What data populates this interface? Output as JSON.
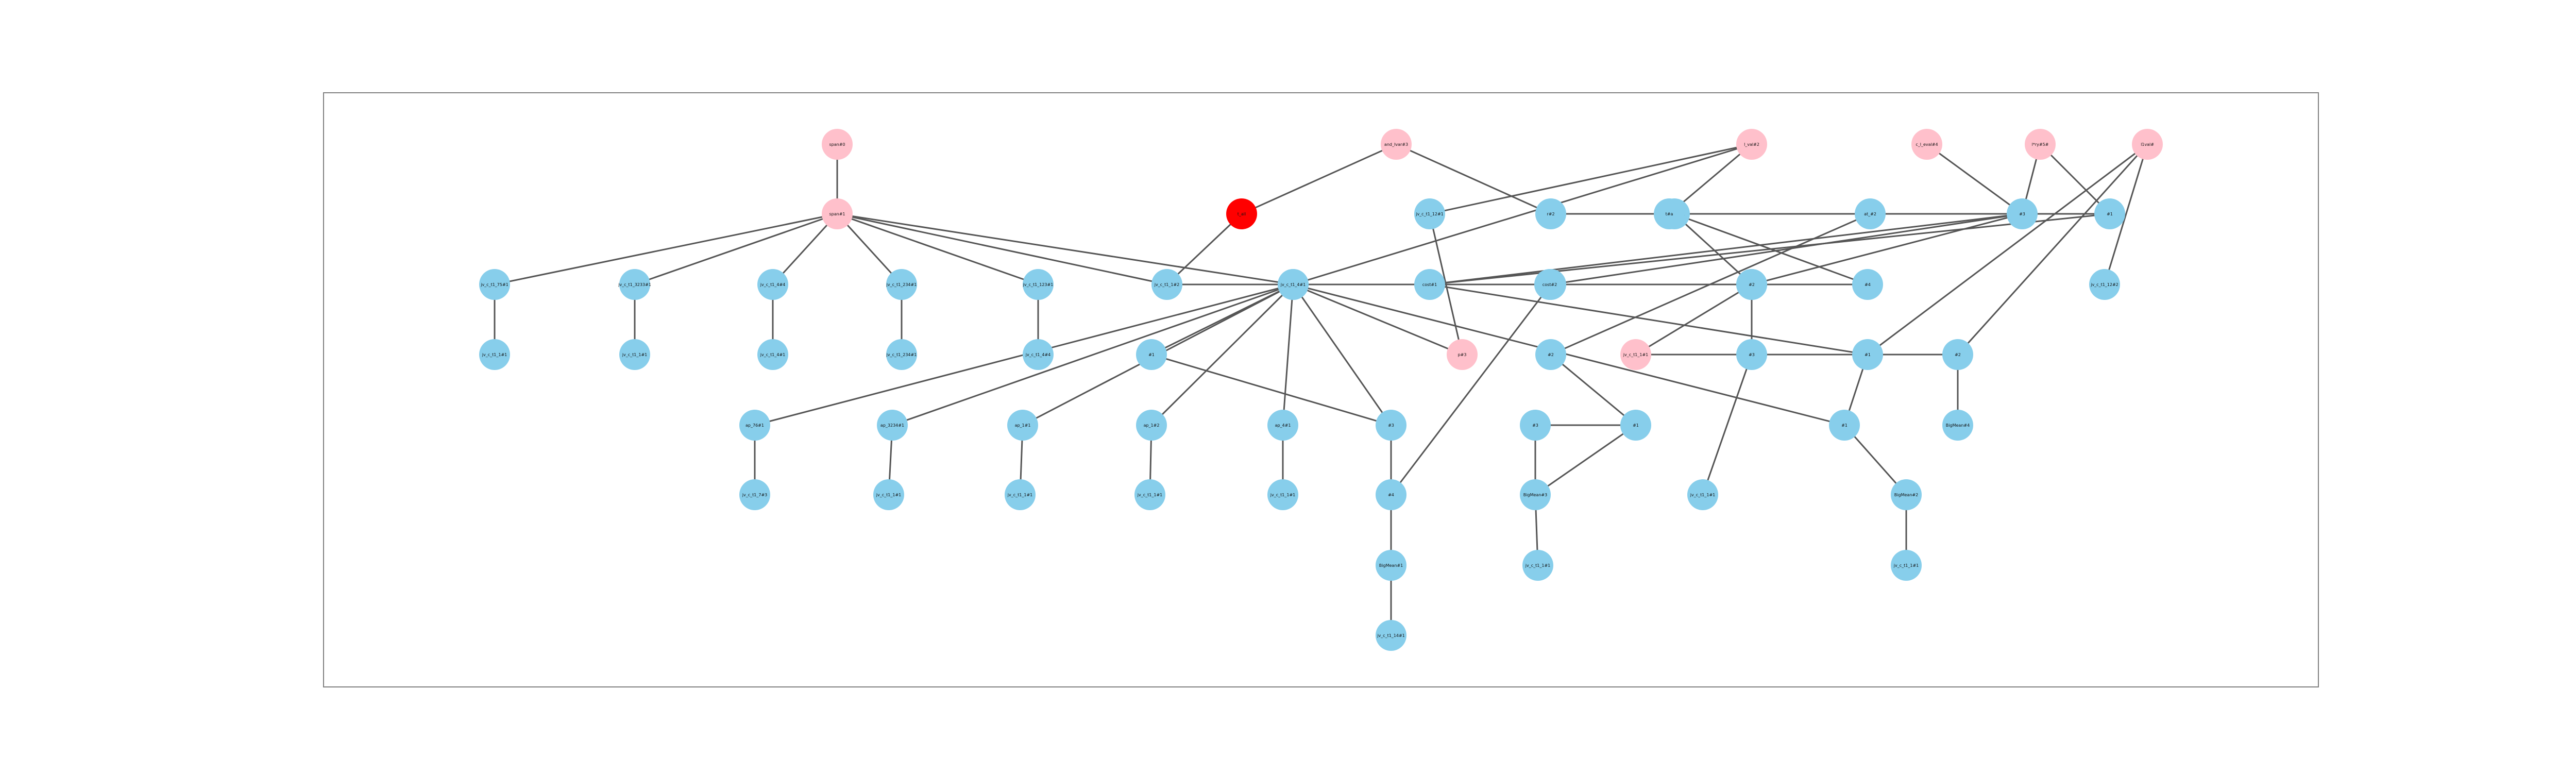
{
  "colors": {
    "background": "#ffffff",
    "frame_border": "#7f7f7f",
    "edge": "#555555",
    "node_default": "#87ceeb",
    "node_input": "#ffc0cb",
    "node_output": "#ff0000",
    "label": "#111111"
  },
  "graph": {
    "nodes": [
      {
        "id": "N1",
        "label": "span#0",
        "kind": "input"
      },
      {
        "id": "N2",
        "label": "span#1",
        "kind": "input"
      },
      {
        "id": "N3",
        "label": "and_Ivar#3",
        "kind": "input"
      },
      {
        "id": "N4",
        "label": "c_l_eval#4",
        "kind": "input"
      },
      {
        "id": "N5",
        "label": "l*ry#5#",
        "kind": "input"
      },
      {
        "id": "N6",
        "label": "l_val#2",
        "kind": "input"
      },
      {
        "id": "N7",
        "label": "l1val#",
        "kind": "input"
      },
      {
        "id": "N8",
        "label": "t_all",
        "kind": "output"
      },
      {
        "id": "N9",
        "label": "r#2",
        "kind": "default"
      },
      {
        "id": "N10",
        "label": "tag_cat#1",
        "kind": "default"
      },
      {
        "id": "N11",
        "label": "at_#2",
        "kind": "default"
      },
      {
        "id": "N12",
        "label": "#3",
        "kind": "default"
      },
      {
        "id": "N13",
        "label": "#1",
        "kind": "default"
      },
      {
        "id": "N14",
        "label": "jv_c_t1_75#1",
        "kind": "default"
      },
      {
        "id": "N15",
        "label": "jv_c_t1_3233#1",
        "kind": "default"
      },
      {
        "id": "N16",
        "label": "jv_c_t1_4#4",
        "kind": "default"
      },
      {
        "id": "N17",
        "label": "jv_c_t1_234#1",
        "kind": "default"
      },
      {
        "id": "N18",
        "label": "jv_c_t1_123#1",
        "kind": "default"
      },
      {
        "id": "N19",
        "label": "jv_c_t1_1#1",
        "kind": "default"
      },
      {
        "id": "N20",
        "label": "jv_c_t1_1#2",
        "kind": "default"
      },
      {
        "id": "N21",
        "label": "#3",
        "kind": "default"
      },
      {
        "id": "N22",
        "label": "cost#1",
        "kind": "default"
      },
      {
        "id": "N23",
        "label": "jv_c_t1_1#1",
        "kind": "default"
      },
      {
        "id": "N24",
        "label": "tag_#3#1",
        "kind": "default"
      },
      {
        "id": "N25",
        "label": "#1",
        "kind": "default"
      },
      {
        "id": "N26",
        "label": "jv_c_t1_4#1",
        "kind": "default"
      },
      {
        "id": "N27",
        "label": "jv_c_t1_234#1",
        "kind": "default"
      },
      {
        "id": "N28",
        "label": "jv_c_t1_4#4",
        "kind": "default"
      },
      {
        "id": "N29",
        "label": "jv_c_t1_12#1",
        "kind": "default"
      },
      {
        "id": "N30",
        "label": "jv_c_t1_4#1",
        "kind": "default"
      },
      {
        "id": "N31",
        "label": "t#a",
        "kind": "default"
      },
      {
        "id": "N32",
        "label": "cost#2",
        "kind": "default"
      },
      {
        "id": "N33",
        "label": "p#3",
        "kind": "input"
      },
      {
        "id": "N34",
        "label": "#1",
        "kind": "default"
      },
      {
        "id": "N35",
        "label": "#2",
        "kind": "default"
      },
      {
        "id": "N36",
        "label": "jv_c_t1_1#1",
        "kind": "input"
      },
      {
        "id": "N37",
        "label": "#1",
        "kind": "default"
      },
      {
        "id": "N38",
        "label": "#4",
        "kind": "default"
      },
      {
        "id": "N39",
        "label": "#2",
        "kind": "default"
      },
      {
        "id": "N40",
        "label": "jv_c_t1_12#2",
        "kind": "default"
      },
      {
        "id": "N41",
        "label": "ap_76#1",
        "kind": "default"
      },
      {
        "id": "N42",
        "label": "ap_3234#1",
        "kind": "default"
      },
      {
        "id": "N43",
        "label": "ap_1#1",
        "kind": "default"
      },
      {
        "id": "N44",
        "label": "ap_1#2",
        "kind": "default"
      },
      {
        "id": "N45",
        "label": "ap_4#1",
        "kind": "default"
      },
      {
        "id": "N46",
        "label": "#3",
        "kind": "default"
      },
      {
        "id": "N47",
        "label": "#4",
        "kind": "default"
      },
      {
        "id": "N48",
        "label": "#2",
        "kind": "default"
      },
      {
        "id": "N49",
        "label": "#1",
        "kind": "default"
      },
      {
        "id": "N50",
        "label": "#1",
        "kind": "default"
      },
      {
        "id": "N51",
        "label": "jv_c_t1_7#3",
        "kind": "default"
      },
      {
        "id": "N52",
        "label": "jv_c_t1_1#1",
        "kind": "default"
      },
      {
        "id": "N53",
        "label": "jv_c_t1_1#1",
        "kind": "default"
      },
      {
        "id": "N54",
        "label": "jv_c_t1_1#1",
        "kind": "default"
      },
      {
        "id": "N55",
        "label": "jv_c_t1_1#1",
        "kind": "default"
      },
      {
        "id": "N56",
        "label": "#3",
        "kind": "default"
      },
      {
        "id": "N57",
        "label": "BigMean#1",
        "kind": "default"
      },
      {
        "id": "N58",
        "label": "BigMean#2",
        "kind": "default"
      },
      {
        "id": "N59",
        "label": "#3",
        "kind": "default"
      },
      {
        "id": "N60",
        "label": "BigMean#3",
        "kind": "default"
      },
      {
        "id": "N61",
        "label": "jv_c_t1_1#1",
        "kind": "default"
      },
      {
        "id": "N62",
        "label": "jv_c_t1_1#1",
        "kind": "default"
      },
      {
        "id": "N63",
        "label": "jv_c_t1_1#1",
        "kind": "default"
      },
      {
        "id": "N64",
        "label": "BigMean#4",
        "kind": "default"
      },
      {
        "id": "N65",
        "label": "jv_c_t1_14#1",
        "kind": "default"
      }
    ],
    "edges": [
      [
        "N1",
        "N2"
      ],
      [
        "N2",
        "N14"
      ],
      [
        "N2",
        "N15"
      ],
      [
        "N2",
        "N16"
      ],
      [
        "N2",
        "N17"
      ],
      [
        "N2",
        "N18"
      ],
      [
        "N2",
        "N20"
      ],
      [
        "N2",
        "N21"
      ],
      [
        "N14",
        "N19"
      ],
      [
        "N15",
        "N23"
      ],
      [
        "N16",
        "N26"
      ],
      [
        "N17",
        "N27"
      ],
      [
        "N18",
        "N28"
      ],
      [
        "N8",
        "N3"
      ],
      [
        "N8",
        "N20"
      ],
      [
        "N3",
        "N9"
      ],
      [
        "N9",
        "N10"
      ],
      [
        "N9",
        "N11"
      ],
      [
        "N9",
        "N12"
      ],
      [
        "N9",
        "N13"
      ],
      [
        "N10",
        "N38"
      ],
      [
        "N10",
        "N39"
      ],
      [
        "N11",
        "N35"
      ],
      [
        "N12",
        "N22"
      ],
      [
        "N12",
        "N24"
      ],
      [
        "N12",
        "N25"
      ],
      [
        "N13",
        "N22"
      ],
      [
        "N6",
        "N29"
      ],
      [
        "N6",
        "N30"
      ],
      [
        "N6",
        "N31"
      ],
      [
        "N29",
        "N33"
      ],
      [
        "N30",
        "N33"
      ],
      [
        "N30",
        "N32"
      ],
      [
        "N30",
        "N49"
      ],
      [
        "N20",
        "N30"
      ],
      [
        "N21",
        "N34"
      ],
      [
        "N21",
        "N41"
      ],
      [
        "N21",
        "N42"
      ],
      [
        "N21",
        "N43"
      ],
      [
        "N21",
        "N44"
      ],
      [
        "N21",
        "N45"
      ],
      [
        "N21",
        "N46"
      ],
      [
        "N41",
        "N51"
      ],
      [
        "N42",
        "N52"
      ],
      [
        "N43",
        "N53"
      ],
      [
        "N44",
        "N54"
      ],
      [
        "N45",
        "N55"
      ],
      [
        "N22",
        "N37"
      ],
      [
        "N24",
        "N47"
      ],
      [
        "N25",
        "N36"
      ],
      [
        "N34",
        "N46"
      ],
      [
        "N35",
        "N50"
      ],
      [
        "N36",
        "N48"
      ],
      [
        "N48",
        "N64"
      ],
      [
        "N46",
        "N47"
      ],
      [
        "N47",
        "N57"
      ],
      [
        "N57",
        "N65"
      ],
      [
        "N37",
        "N49"
      ],
      [
        "N49",
        "N58"
      ],
      [
        "N58",
        "N61"
      ],
      [
        "N50",
        "N59"
      ],
      [
        "N50",
        "N60"
      ],
      [
        "N59",
        "N60"
      ],
      [
        "N60",
        "N62"
      ],
      [
        "N38",
        "N32"
      ],
      [
        "N39",
        "N56"
      ],
      [
        "N56",
        "N63"
      ],
      [
        "N7",
        "N37"
      ],
      [
        "N7",
        "N48"
      ],
      [
        "N7",
        "N40"
      ],
      [
        "N4",
        "N12"
      ],
      [
        "N5",
        "N12"
      ],
      [
        "N5",
        "N13"
      ]
    ]
  }
}
